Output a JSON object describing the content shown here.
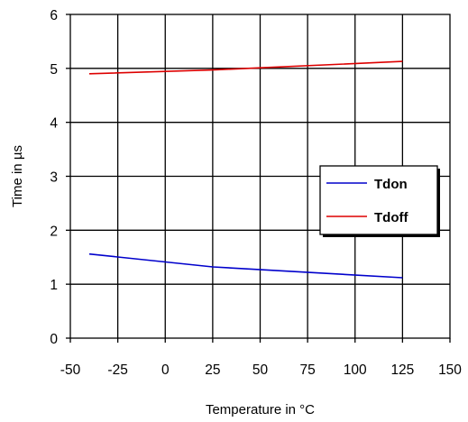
{
  "chart_data": {
    "type": "line",
    "title": "",
    "xlabel": "Temperature in °C",
    "ylabel": "Time in µs",
    "xlim": [
      -50,
      150
    ],
    "ylim": [
      0,
      6
    ],
    "xticks": [
      "-50",
      "-25",
      "0",
      "25",
      "50",
      "75",
      "100",
      "125",
      "150"
    ],
    "yticks": [
      "0",
      "1",
      "2",
      "3",
      "4",
      "5",
      "6"
    ],
    "grid": true,
    "legend_position": "right",
    "series": [
      {
        "name": "Tdon",
        "color": "#0000cc",
        "x": [
          -40,
          25,
          125
        ],
        "y": [
          1.56,
          1.32,
          1.12
        ]
      },
      {
        "name": "Tdoff",
        "color": "#dd0000",
        "x": [
          -40,
          25,
          50,
          125
        ],
        "y": [
          4.9,
          4.97,
          5.01,
          5.13
        ]
      }
    ]
  }
}
